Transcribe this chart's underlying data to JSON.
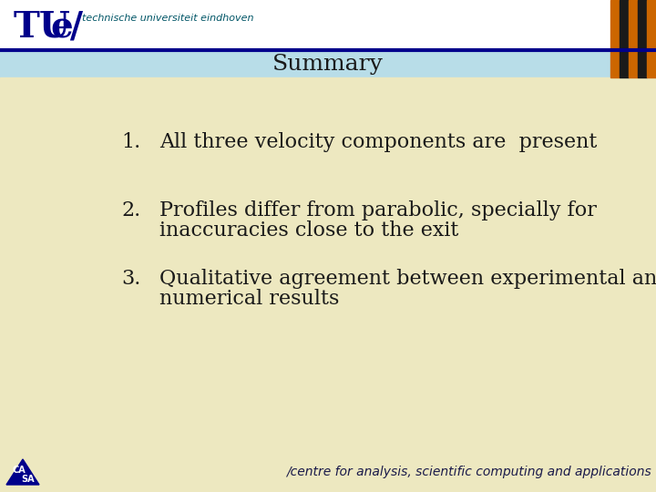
{
  "bg_top_color": "#B8DDE8",
  "bg_main_color": "#EDE8C0",
  "header_bar_color": "#C8E8F0",
  "header_line_color": "#00008B",
  "title_text": "Summary",
  "title_color": "#1a1a1a",
  "title_fontsize": 18,
  "items": [
    {
      "number": "1.",
      "lines": [
        "All three velocity components are  present"
      ]
    },
    {
      "number": "2.",
      "lines": [
        "Profiles differ from parabolic, specially for",
        "inaccuracies close to the exit"
      ]
    },
    {
      "number": "3.",
      "lines": [
        "Qualitative agreement between experimental and",
        "numerical results"
      ]
    }
  ],
  "item_fontsize": 16,
  "item_color": "#1a1a1a",
  "footer_text": "/centre for analysis, scientific computing and applications",
  "footer_color": "#1a1a4a",
  "footer_fontsize": 10,
  "tu_text": "TU/e",
  "tu_subtext": "technische universiteit eindhoven",
  "tu_color": "#00008B",
  "tu_subtext_color": "#005566",
  "white_header_bg": "#FFFFFF",
  "stripe_colors": [
    "#CC6600",
    "#000000",
    "#CC6600"
  ],
  "casa_text_color": "#00008B"
}
